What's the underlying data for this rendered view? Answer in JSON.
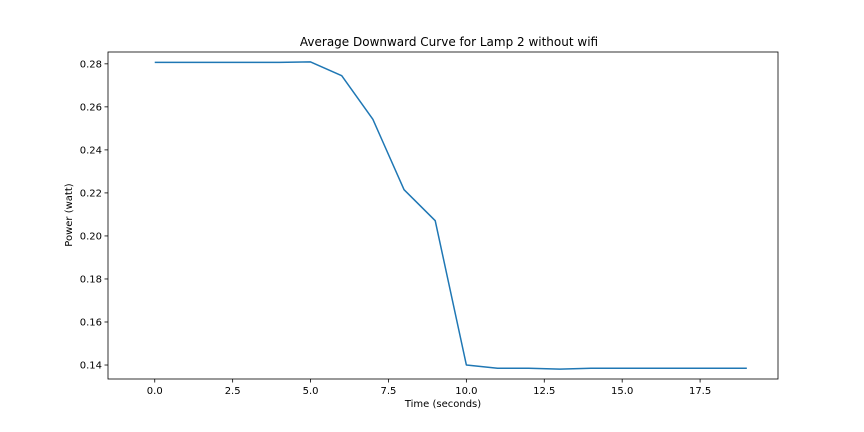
{
  "chart_data": {
    "type": "line",
    "title": "Average Downward Curve for Lamp 2 without wifi",
    "xlabel": "Time (seconds)",
    "ylabel": "Power (watt)",
    "xlim": [
      -1.5,
      20.0
    ],
    "ylim": [
      0.1335,
      0.2855
    ],
    "xticks": [
      0.0,
      2.5,
      5.0,
      7.5,
      10.0,
      12.5,
      15.0,
      17.5
    ],
    "xtick_labels": [
      "0.0",
      "2.5",
      "5.0",
      "7.5",
      "10.0",
      "12.5",
      "15.0",
      "17.5"
    ],
    "yticks": [
      0.14,
      0.16,
      0.18,
      0.2,
      0.22,
      0.24,
      0.26,
      0.28
    ],
    "ytick_labels": [
      "0.14",
      "0.16",
      "0.18",
      "0.20",
      "0.22",
      "0.24",
      "0.26",
      "0.28"
    ],
    "grid": false,
    "series": [
      {
        "color": "#1f77b4",
        "x": [
          0,
          1,
          2,
          3,
          4,
          5,
          6,
          7,
          8,
          9,
          10,
          11,
          12,
          13,
          14,
          15,
          16,
          17,
          18,
          19
        ],
        "y": [
          0.2807,
          0.2807,
          0.2807,
          0.2807,
          0.2807,
          0.2809,
          0.2745,
          0.2542,
          0.2215,
          0.2071,
          0.14,
          0.1385,
          0.1385,
          0.1381,
          0.1385,
          0.1385,
          0.1385,
          0.1385,
          0.1385,
          0.1385
        ]
      }
    ]
  }
}
